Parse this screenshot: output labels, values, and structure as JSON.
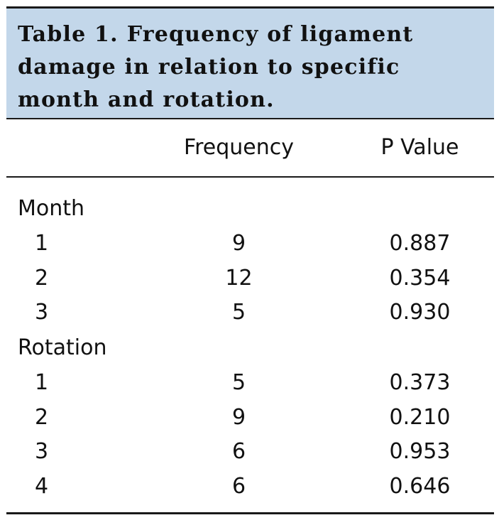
{
  "caption": {
    "label": "Table 1.",
    "text": "Frequency of ligament damage in relation to specific month and rotation."
  },
  "columns": {
    "frequency": "Frequency",
    "p_value": "P Value"
  },
  "groups": [
    {
      "name": "Month",
      "rows": [
        {
          "level": "1",
          "frequency": "9",
          "p_value": "0.887"
        },
        {
          "level": "2",
          "frequency": "12",
          "p_value": "0.354"
        },
        {
          "level": "3",
          "frequency": "5",
          "p_value": "0.930"
        }
      ]
    },
    {
      "name": "Rotation",
      "rows": [
        {
          "level": "1",
          "frequency": "5",
          "p_value": "0.373"
        },
        {
          "level": "2",
          "frequency": "9",
          "p_value": "0.210"
        },
        {
          "level": "3",
          "frequency": "6",
          "p_value": "0.953"
        },
        {
          "level": "4",
          "frequency": "6",
          "p_value": "0.646"
        }
      ]
    }
  ]
}
